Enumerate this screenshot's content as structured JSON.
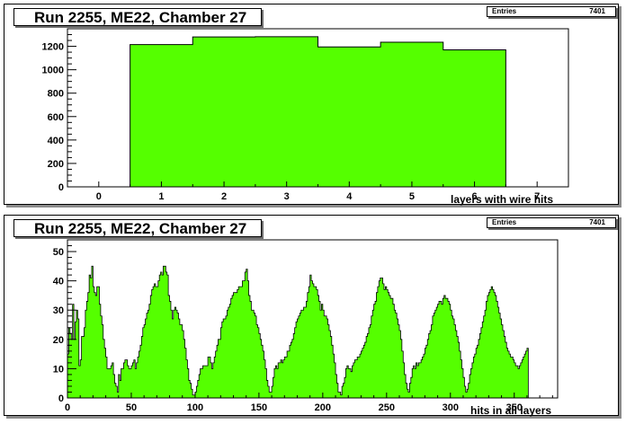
{
  "colors": {
    "fill": "#55ff00",
    "line": "#000000",
    "frame": "#000000"
  },
  "chart_data": [
    {
      "type": "bar",
      "title": "Run 2255, ME22, Chamber 27",
      "xlabel": "layers with wire hits",
      "ylabel": "",
      "stats": {
        "label": "Entries",
        "value": "7401"
      },
      "xlim": [
        -0.5,
        7.5
      ],
      "ylim": [
        0,
        1350
      ],
      "xticks": [
        0,
        1,
        2,
        3,
        4,
        5,
        6,
        7
      ],
      "yticks": [
        0,
        200,
        400,
        600,
        800,
        1000,
        1200
      ],
      "categories": [
        1,
        2,
        3,
        4,
        5,
        6
      ],
      "values": [
        1215,
        1280,
        1282,
        1195,
        1235,
        1170
      ]
    },
    {
      "type": "bar",
      "title": "Run 2255, ME22, Chamber 27",
      "xlabel": "hits in all layers",
      "ylabel": "",
      "stats": {
        "label": "Entries",
        "value": "7401"
      },
      "xlim": [
        0,
        384
      ],
      "ylim": [
        0,
        54
      ],
      "xticks": [
        0,
        50,
        100,
        150,
        200,
        250,
        300,
        350
      ],
      "yticks": [
        0,
        10,
        20,
        30,
        40,
        50
      ],
      "bin_width": 1,
      "values": [
        15,
        24,
        22,
        20,
        32,
        20,
        26,
        30,
        27,
        11,
        13,
        21,
        21,
        24,
        30,
        33,
        36,
        42,
        41,
        45,
        38,
        36,
        35,
        38,
        38,
        32,
        28,
        25,
        20,
        17,
        14,
        10,
        10,
        10,
        11,
        12,
        8,
        5,
        4,
        2,
        8,
        6,
        10,
        10,
        12,
        13,
        13,
        11,
        10,
        10,
        11,
        12,
        13,
        10,
        12,
        14,
        16,
        18,
        21,
        24,
        25,
        27,
        29,
        30,
        32,
        35,
        37,
        38,
        39,
        38,
        38,
        40,
        42,
        43,
        42,
        45,
        45,
        43,
        42,
        35,
        33,
        30,
        27,
        30,
        31,
        30,
        29,
        27,
        25,
        25,
        23,
        20,
        17,
        13,
        10,
        6,
        5,
        3,
        1,
        1,
        2,
        4,
        6,
        8,
        10,
        10,
        11,
        11,
        11,
        11,
        14,
        14,
        12,
        10,
        12,
        14,
        16,
        18,
        20,
        20,
        24,
        26,
        27,
        27,
        28,
        30,
        31,
        32,
        34,
        35,
        36,
        36,
        36,
        37,
        38,
        38,
        38,
        40,
        40,
        43,
        44,
        40,
        35,
        33,
        30,
        30,
        29,
        28,
        25,
        24,
        22,
        20,
        18,
        16,
        13,
        10,
        6,
        4,
        2,
        2,
        4,
        7,
        10,
        11,
        10,
        12,
        12,
        13,
        12,
        13,
        14,
        14,
        16,
        16,
        18,
        19,
        20,
        22,
        24,
        26,
        27,
        28,
        29,
        30,
        30,
        31,
        31,
        33,
        36,
        38,
        42,
        40,
        39,
        38,
        38,
        37,
        35,
        33,
        30,
        32,
        30,
        28,
        28,
        27,
        25,
        23,
        21,
        18,
        15,
        12,
        8,
        5,
        2,
        2,
        1,
        4,
        5,
        7,
        10,
        11,
        10,
        10,
        9,
        11,
        12,
        13,
        13,
        14,
        14,
        15,
        16,
        17,
        18,
        19,
        21,
        22,
        24,
        25,
        28,
        30,
        32,
        33,
        36,
        38,
        40,
        41,
        41,
        39,
        37,
        38,
        37,
        36,
        35,
        34,
        34,
        32,
        30,
        29,
        27,
        25,
        23,
        20,
        16,
        12,
        8,
        5,
        3,
        2,
        5,
        7,
        10,
        11,
        10,
        12,
        11,
        12,
        12,
        13,
        14,
        15,
        17,
        18,
        20,
        22,
        23,
        25,
        28,
        29,
        30,
        31,
        32,
        33,
        33,
        32,
        34,
        35,
        34,
        34,
        33,
        32,
        30,
        28,
        27,
        25,
        23,
        21,
        19,
        16,
        13,
        10,
        7,
        4,
        2,
        3,
        5,
        8,
        10,
        12,
        14,
        15,
        17,
        18,
        20,
        22,
        24,
        26,
        28,
        30,
        33,
        35,
        36,
        37,
        38,
        37,
        36,
        35,
        33,
        31,
        29,
        27,
        25,
        23,
        21,
        19,
        17,
        16,
        15,
        14,
        14,
        13,
        12,
        11,
        11,
        10,
        11,
        12,
        13,
        14,
        15,
        16,
        17
      ]
    }
  ]
}
